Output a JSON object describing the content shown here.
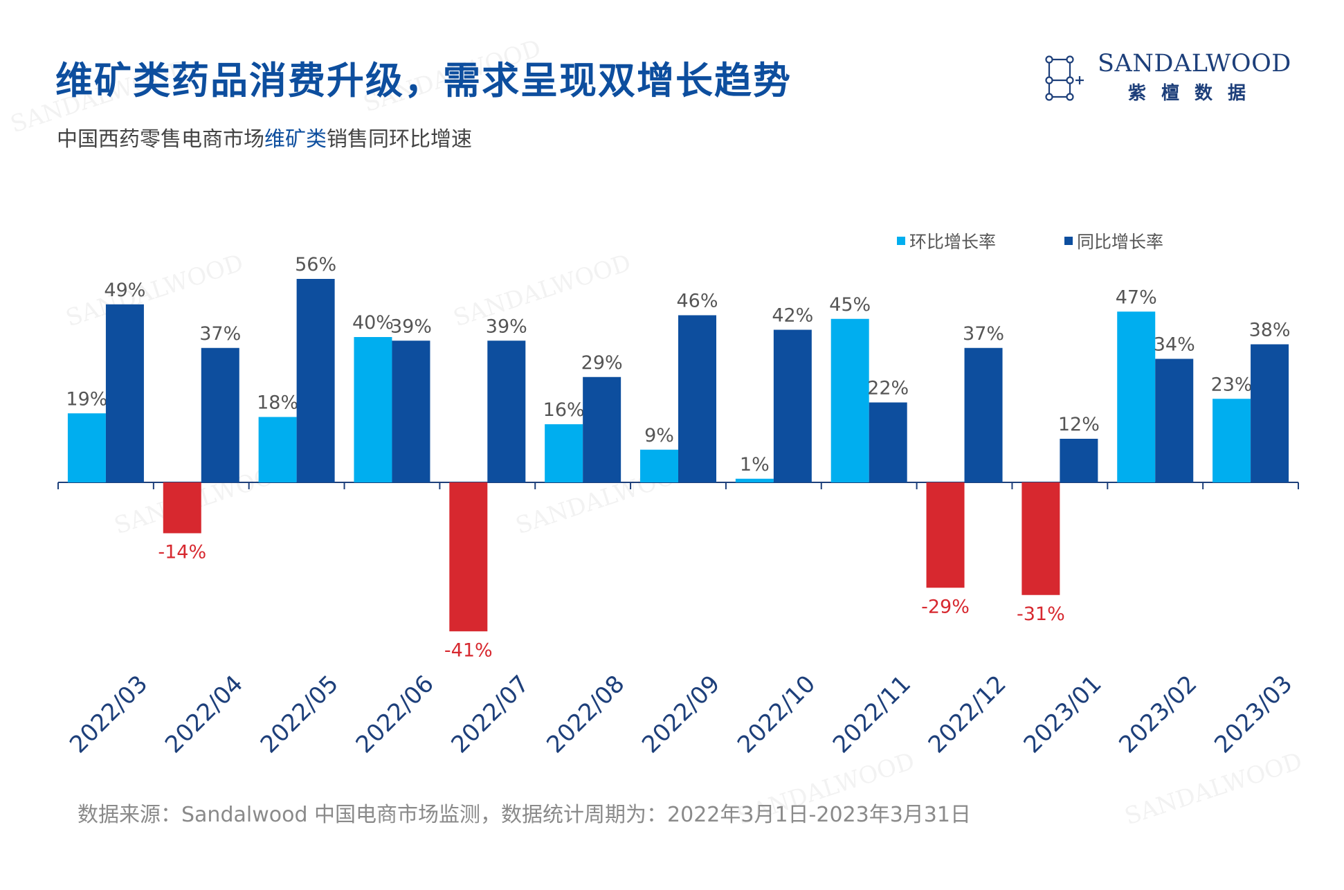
{
  "title_main": "维矿类药品消费升级，需求呈现双增长趋势",
  "subtitle": {
    "prefix": "中国西药零售电商市场",
    "highlight": "维矿类",
    "suffix": "销售同环比增速"
  },
  "brand": {
    "name_en": "SANDALWOOD",
    "name_cn": "紫檀数据",
    "icon": "molecule-logo"
  },
  "watermark": "SANDALWOOD",
  "source": "数据来源：Sandalwood 中国电商市场监测，数据统计周期为：2022年3月1日-2023年3月31日",
  "colors": {
    "mom_positive": "#00aeef",
    "yoy_positive": "#0d4e9e",
    "negative": "#d7282f",
    "title": "#0d4e9e",
    "axis_labels": "#1d3f7a"
  },
  "chart_data": {
    "type": "bar",
    "categories": [
      "2022/03",
      "2022/04",
      "2022/05",
      "2022/06",
      "2022/07",
      "2022/08",
      "2022/09",
      "2022/10",
      "2022/11",
      "2022/12",
      "2023/01",
      "2023/02",
      "2023/03"
    ],
    "series": [
      {
        "name": "环比增长率",
        "values": [
          19,
          -14,
          18,
          40,
          -41,
          16,
          9,
          1,
          45,
          -29,
          -31,
          47,
          23
        ]
      },
      {
        "name": "同比增长率",
        "values": [
          49,
          37,
          56,
          39,
          39,
          29,
          46,
          42,
          22,
          37,
          12,
          34,
          38
        ]
      }
    ],
    "unit": "%",
    "legend_position": "top-right",
    "grid": false
  }
}
